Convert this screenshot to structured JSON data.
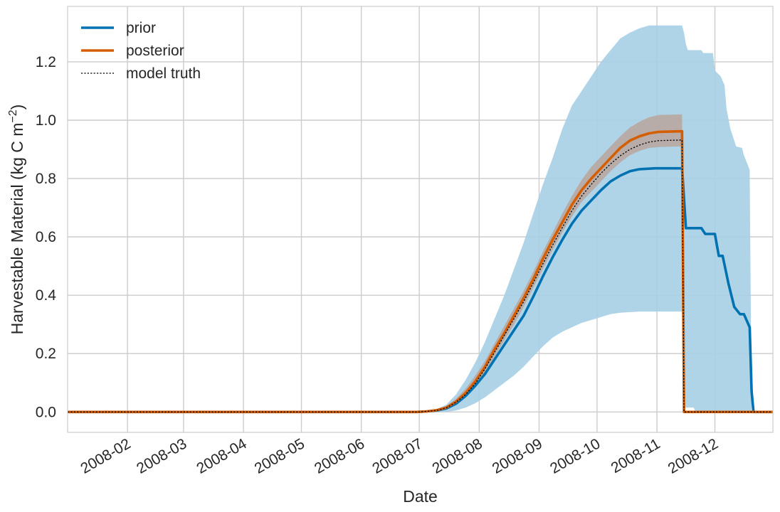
{
  "chart_data": {
    "type": "line",
    "xlabel": "Date",
    "ylabel": "Harvestable Material (kg C m",
    "ylabel_sup": "−2",
    "ylabel_close": ")",
    "xlim": [
      "2008-01-01",
      "2008-12-31"
    ],
    "ylim": [
      -0.07,
      1.39
    ],
    "grid": true,
    "legend_position": "top-left",
    "x_ticks": [
      "2008-02-01",
      "2008-03-01",
      "2008-04-01",
      "2008-05-01",
      "2008-06-01",
      "2008-07-01",
      "2008-08-01",
      "2008-09-01",
      "2008-10-01",
      "2008-11-01",
      "2008-12-01"
    ],
    "x_tick_labels": [
      "2008-02",
      "2008-03",
      "2008-04",
      "2008-05",
      "2008-06",
      "2008-07",
      "2008-08",
      "2008-09",
      "2008-10",
      "2008-11",
      "2008-12"
    ],
    "y_ticks": [
      0.0,
      0.2,
      0.4,
      0.6,
      0.8,
      1.0,
      1.2
    ],
    "y_tick_labels": [
      "0.0",
      "0.2",
      "0.4",
      "0.6",
      "0.8",
      "1.0",
      "1.2"
    ],
    "colors": {
      "prior": "#0072b2",
      "prior_band": "#a6cfe5",
      "posterior": "#d55e00",
      "posterior_band": "#b9a59b",
      "truth": "#000000",
      "grid": "#cccccc"
    },
    "series": [
      {
        "name": "prior",
        "style": "solid",
        "points": [
          [
            "2008-01-01",
            0.0
          ],
          [
            "2008-06-30",
            0.0
          ],
          [
            "2008-07-05",
            0.002
          ],
          [
            "2008-07-10",
            0.005
          ],
          [
            "2008-07-15",
            0.012
          ],
          [
            "2008-07-20",
            0.028
          ],
          [
            "2008-07-25",
            0.055
          ],
          [
            "2008-07-30",
            0.09
          ],
          [
            "2008-08-04",
            0.13
          ],
          [
            "2008-08-09",
            0.18
          ],
          [
            "2008-08-14",
            0.23
          ],
          [
            "2008-08-19",
            0.28
          ],
          [
            "2008-08-24",
            0.33
          ],
          [
            "2008-08-29",
            0.395
          ],
          [
            "2008-09-03",
            0.465
          ],
          [
            "2008-09-08",
            0.53
          ],
          [
            "2008-09-13",
            0.59
          ],
          [
            "2008-09-18",
            0.645
          ],
          [
            "2008-09-23",
            0.69
          ],
          [
            "2008-09-28",
            0.725
          ],
          [
            "2008-10-03",
            0.76
          ],
          [
            "2008-10-08",
            0.79
          ],
          [
            "2008-10-13",
            0.81
          ],
          [
            "2008-10-18",
            0.825
          ],
          [
            "2008-10-23",
            0.832
          ],
          [
            "2008-10-31",
            0.835
          ],
          [
            "2008-11-10",
            0.835
          ],
          [
            "2008-11-14",
            0.835
          ],
          [
            "2008-11-16",
            0.63
          ],
          [
            "2008-11-24",
            0.63
          ],
          [
            "2008-11-26",
            0.61
          ],
          [
            "2008-12-01",
            0.61
          ],
          [
            "2008-12-03",
            0.535
          ],
          [
            "2008-12-05",
            0.535
          ],
          [
            "2008-12-08",
            0.44
          ],
          [
            "2008-12-11",
            0.36
          ],
          [
            "2008-12-14",
            0.335
          ],
          [
            "2008-12-16",
            0.335
          ],
          [
            "2008-12-19",
            0.29
          ],
          [
            "2008-12-20",
            0.07
          ],
          [
            "2008-12-21",
            0.0
          ],
          [
            "2008-12-31",
            0.0
          ]
        ]
      },
      {
        "name": "posterior",
        "style": "solid",
        "points": [
          [
            "2008-01-01",
            0.0
          ],
          [
            "2008-06-30",
            0.0
          ],
          [
            "2008-07-05",
            0.002
          ],
          [
            "2008-07-10",
            0.006
          ],
          [
            "2008-07-15",
            0.015
          ],
          [
            "2008-07-20",
            0.035
          ],
          [
            "2008-07-25",
            0.065
          ],
          [
            "2008-07-30",
            0.105
          ],
          [
            "2008-08-04",
            0.155
          ],
          [
            "2008-08-09",
            0.215
          ],
          [
            "2008-08-14",
            0.27
          ],
          [
            "2008-08-19",
            0.33
          ],
          [
            "2008-08-24",
            0.39
          ],
          [
            "2008-08-29",
            0.455
          ],
          [
            "2008-09-03",
            0.525
          ],
          [
            "2008-09-08",
            0.59
          ],
          [
            "2008-09-13",
            0.65
          ],
          [
            "2008-09-18",
            0.71
          ],
          [
            "2008-09-23",
            0.76
          ],
          [
            "2008-09-28",
            0.8
          ],
          [
            "2008-10-03",
            0.835
          ],
          [
            "2008-10-08",
            0.87
          ],
          [
            "2008-10-13",
            0.905
          ],
          [
            "2008-10-18",
            0.93
          ],
          [
            "2008-10-23",
            0.945
          ],
          [
            "2008-10-28",
            0.955
          ],
          [
            "2008-11-02",
            0.96
          ],
          [
            "2008-11-14",
            0.962
          ],
          [
            "2008-11-15",
            0.0
          ],
          [
            "2008-12-31",
            0.0
          ]
        ]
      },
      {
        "name": "model truth",
        "style": "dotted",
        "points": [
          [
            "2008-01-01",
            0.0
          ],
          [
            "2008-06-30",
            0.0
          ],
          [
            "2008-07-05",
            0.002
          ],
          [
            "2008-07-10",
            0.005
          ],
          [
            "2008-07-15",
            0.014
          ],
          [
            "2008-07-20",
            0.033
          ],
          [
            "2008-07-25",
            0.06
          ],
          [
            "2008-07-30",
            0.098
          ],
          [
            "2008-08-04",
            0.148
          ],
          [
            "2008-08-09",
            0.205
          ],
          [
            "2008-08-14",
            0.262
          ],
          [
            "2008-08-19",
            0.32
          ],
          [
            "2008-08-24",
            0.378
          ],
          [
            "2008-08-29",
            0.442
          ],
          [
            "2008-09-03",
            0.508
          ],
          [
            "2008-09-08",
            0.572
          ],
          [
            "2008-09-13",
            0.632
          ],
          [
            "2008-09-18",
            0.69
          ],
          [
            "2008-09-23",
            0.74
          ],
          [
            "2008-09-28",
            0.78
          ],
          [
            "2008-10-03",
            0.818
          ],
          [
            "2008-10-08",
            0.85
          ],
          [
            "2008-10-13",
            0.878
          ],
          [
            "2008-10-18",
            0.9
          ],
          [
            "2008-10-23",
            0.915
          ],
          [
            "2008-10-28",
            0.925
          ],
          [
            "2008-11-02",
            0.93
          ],
          [
            "2008-11-14",
            0.932
          ],
          [
            "2008-11-15",
            0.0
          ],
          [
            "2008-12-31",
            0.0
          ]
        ]
      }
    ],
    "bands": [
      {
        "of": "prior",
        "upper": [
          [
            "2008-01-01",
            0.0
          ],
          [
            "2008-06-30",
            0.0
          ],
          [
            "2008-07-05",
            0.004
          ],
          [
            "2008-07-10",
            0.01
          ],
          [
            "2008-07-15",
            0.025
          ],
          [
            "2008-07-20",
            0.06
          ],
          [
            "2008-07-25",
            0.11
          ],
          [
            "2008-07-30",
            0.17
          ],
          [
            "2008-08-04",
            0.24
          ],
          [
            "2008-08-09",
            0.32
          ],
          [
            "2008-08-14",
            0.4
          ],
          [
            "2008-08-19",
            0.49
          ],
          [
            "2008-08-24",
            0.58
          ],
          [
            "2008-08-29",
            0.68
          ],
          [
            "2008-09-03",
            0.78
          ],
          [
            "2008-09-08",
            0.87
          ],
          [
            "2008-09-13",
            0.97
          ],
          [
            "2008-09-18",
            1.05
          ],
          [
            "2008-09-23",
            1.1
          ],
          [
            "2008-09-28",
            1.15
          ],
          [
            "2008-10-03",
            1.2
          ],
          [
            "2008-10-08",
            1.24
          ],
          [
            "2008-10-13",
            1.28
          ],
          [
            "2008-10-18",
            1.3
          ],
          [
            "2008-10-23",
            1.315
          ],
          [
            "2008-10-28",
            1.325
          ],
          [
            "2008-11-14",
            1.325
          ],
          [
            "2008-11-15",
            1.3
          ],
          [
            "2008-11-16",
            1.26
          ],
          [
            "2008-11-17",
            1.24
          ],
          [
            "2008-11-24",
            1.24
          ],
          [
            "2008-11-25",
            1.23
          ],
          [
            "2008-11-30",
            1.23
          ],
          [
            "2008-12-01",
            1.17
          ],
          [
            "2008-12-04",
            1.15
          ],
          [
            "2008-12-06",
            1.12
          ],
          [
            "2008-12-07",
            1.04
          ],
          [
            "2008-12-09",
            0.97
          ],
          [
            "2008-12-12",
            0.91
          ],
          [
            "2008-12-15",
            0.905
          ],
          [
            "2008-12-16",
            0.88
          ],
          [
            "2008-12-19",
            0.83
          ],
          [
            "2008-12-20",
            0.0
          ],
          [
            "2008-12-31",
            0.0
          ]
        ],
        "lower": [
          [
            "2008-01-01",
            0.0
          ],
          [
            "2008-07-15",
            0.0
          ],
          [
            "2008-07-20",
            0.005
          ],
          [
            "2008-07-25",
            0.015
          ],
          [
            "2008-07-30",
            0.03
          ],
          [
            "2008-08-04",
            0.05
          ],
          [
            "2008-08-09",
            0.075
          ],
          [
            "2008-08-14",
            0.1
          ],
          [
            "2008-08-19",
            0.125
          ],
          [
            "2008-08-24",
            0.155
          ],
          [
            "2008-08-29",
            0.19
          ],
          [
            "2008-09-03",
            0.225
          ],
          [
            "2008-09-08",
            0.255
          ],
          [
            "2008-09-13",
            0.275
          ],
          [
            "2008-09-18",
            0.29
          ],
          [
            "2008-09-23",
            0.305
          ],
          [
            "2008-09-28",
            0.315
          ],
          [
            "2008-10-03",
            0.325
          ],
          [
            "2008-10-08",
            0.335
          ],
          [
            "2008-10-13",
            0.34
          ],
          [
            "2008-10-23",
            0.344
          ],
          [
            "2008-11-14",
            0.344
          ],
          [
            "2008-11-15",
            0.015
          ],
          [
            "2008-11-20",
            0.015
          ],
          [
            "2008-11-21",
            0.0
          ],
          [
            "2008-12-31",
            0.0
          ]
        ]
      },
      {
        "of": "posterior",
        "upper": [
          [
            "2008-01-01",
            0.0
          ],
          [
            "2008-06-30",
            0.0
          ],
          [
            "2008-07-05",
            0.003
          ],
          [
            "2008-07-10",
            0.008
          ],
          [
            "2008-07-15",
            0.02
          ],
          [
            "2008-07-20",
            0.045
          ],
          [
            "2008-07-25",
            0.08
          ],
          [
            "2008-07-30",
            0.125
          ],
          [
            "2008-08-04",
            0.175
          ],
          [
            "2008-08-09",
            0.235
          ],
          [
            "2008-08-14",
            0.295
          ],
          [
            "2008-08-19",
            0.355
          ],
          [
            "2008-08-24",
            0.415
          ],
          [
            "2008-08-29",
            0.48
          ],
          [
            "2008-09-03",
            0.55
          ],
          [
            "2008-09-08",
            0.615
          ],
          [
            "2008-09-13",
            0.68
          ],
          [
            "2008-09-18",
            0.74
          ],
          [
            "2008-09-23",
            0.795
          ],
          [
            "2008-09-28",
            0.84
          ],
          [
            "2008-10-03",
            0.875
          ],
          [
            "2008-10-08",
            0.91
          ],
          [
            "2008-10-13",
            0.945
          ],
          [
            "2008-10-18",
            0.975
          ],
          [
            "2008-10-23",
            0.995
          ],
          [
            "2008-10-28",
            1.01
          ],
          [
            "2008-11-02",
            1.018
          ],
          [
            "2008-11-14",
            1.02
          ],
          [
            "2008-11-15",
            0.0
          ],
          [
            "2008-12-31",
            0.0
          ]
        ],
        "lower": [
          [
            "2008-01-01",
            0.0
          ],
          [
            "2008-06-30",
            0.0
          ],
          [
            "2008-07-05",
            0.001
          ],
          [
            "2008-07-10",
            0.004
          ],
          [
            "2008-07-15",
            0.011
          ],
          [
            "2008-07-20",
            0.027
          ],
          [
            "2008-07-25",
            0.052
          ],
          [
            "2008-07-30",
            0.088
          ],
          [
            "2008-08-04",
            0.135
          ],
          [
            "2008-08-09",
            0.19
          ],
          [
            "2008-08-14",
            0.245
          ],
          [
            "2008-08-19",
            0.3
          ],
          [
            "2008-08-24",
            0.36
          ],
          [
            "2008-08-29",
            0.425
          ],
          [
            "2008-09-03",
            0.49
          ],
          [
            "2008-09-08",
            0.555
          ],
          [
            "2008-09-13",
            0.615
          ],
          [
            "2008-09-18",
            0.67
          ],
          [
            "2008-09-23",
            0.72
          ],
          [
            "2008-09-28",
            0.755
          ],
          [
            "2008-10-03",
            0.79
          ],
          [
            "2008-10-08",
            0.825
          ],
          [
            "2008-10-13",
            0.855
          ],
          [
            "2008-10-18",
            0.88
          ],
          [
            "2008-10-23",
            0.895
          ],
          [
            "2008-10-28",
            0.905
          ],
          [
            "2008-11-02",
            0.908
          ],
          [
            "2008-11-14",
            0.91
          ],
          [
            "2008-11-15",
            0.0
          ],
          [
            "2008-12-31",
            0.0
          ]
        ]
      }
    ]
  },
  "legend": {
    "items": [
      {
        "label": "prior",
        "key": "prior",
        "style": "solid"
      },
      {
        "label": "posterior",
        "key": "posterior",
        "style": "solid"
      },
      {
        "label": "model truth",
        "key": "truth",
        "style": "dotted"
      }
    ]
  }
}
